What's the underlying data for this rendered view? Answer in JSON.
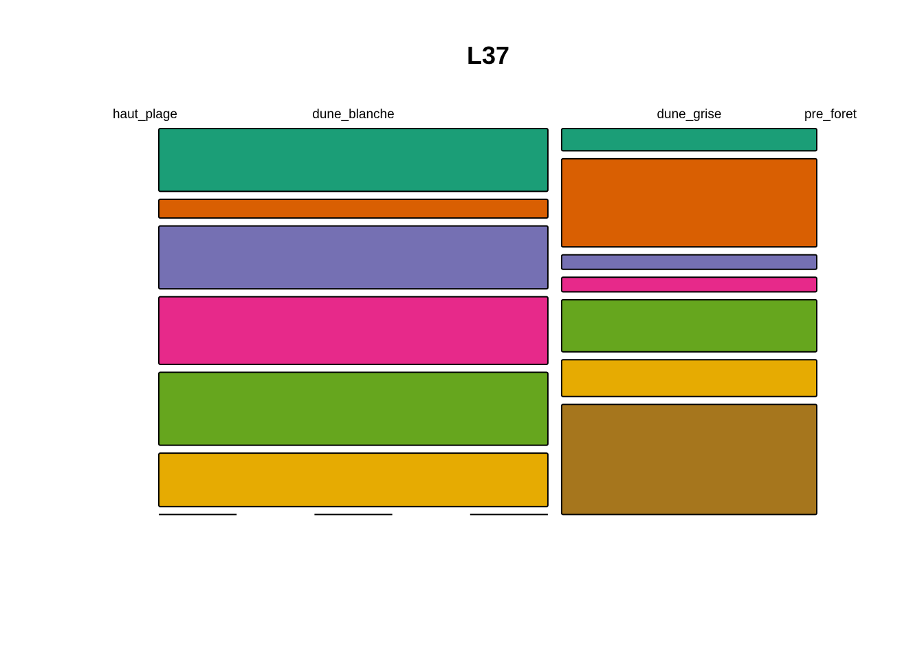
{
  "chart_data": {
    "type": "mosaic",
    "title": "L37",
    "columns": [
      {
        "name": "haut_plage",
        "weight": 0.0
      },
      {
        "name": "dune_blanche",
        "weight": 0.61
      },
      {
        "name": "dune_grise",
        "weight": 0.4
      },
      {
        "name": "pre_foret",
        "weight": 0.0
      }
    ],
    "segments": [
      {
        "key": "s1",
        "color": "#1B9E77"
      },
      {
        "key": "s2",
        "color": "#D95F02"
      },
      {
        "key": "s3",
        "color": "#7570B3"
      },
      {
        "key": "s4",
        "color": "#E7298A"
      },
      {
        "key": "s5",
        "color": "#66A61E"
      },
      {
        "key": "s6",
        "color": "#E6AB02"
      },
      {
        "key": "s7",
        "color": "#A6761D"
      }
    ],
    "values": {
      "haut_plage": [
        0,
        0,
        0,
        0,
        0,
        0,
        0
      ],
      "dune_blanche": [
        0.181,
        0.054,
        0.181,
        0.195,
        0.21,
        0.154,
        0
      ],
      "dune_grise": [
        0.064,
        0.254,
        0.042,
        0.042,
        0.15,
        0.106,
        0.317
      ],
      "pre_foret": [
        0,
        0,
        0,
        0,
        0,
        0,
        0
      ]
    }
  }
}
